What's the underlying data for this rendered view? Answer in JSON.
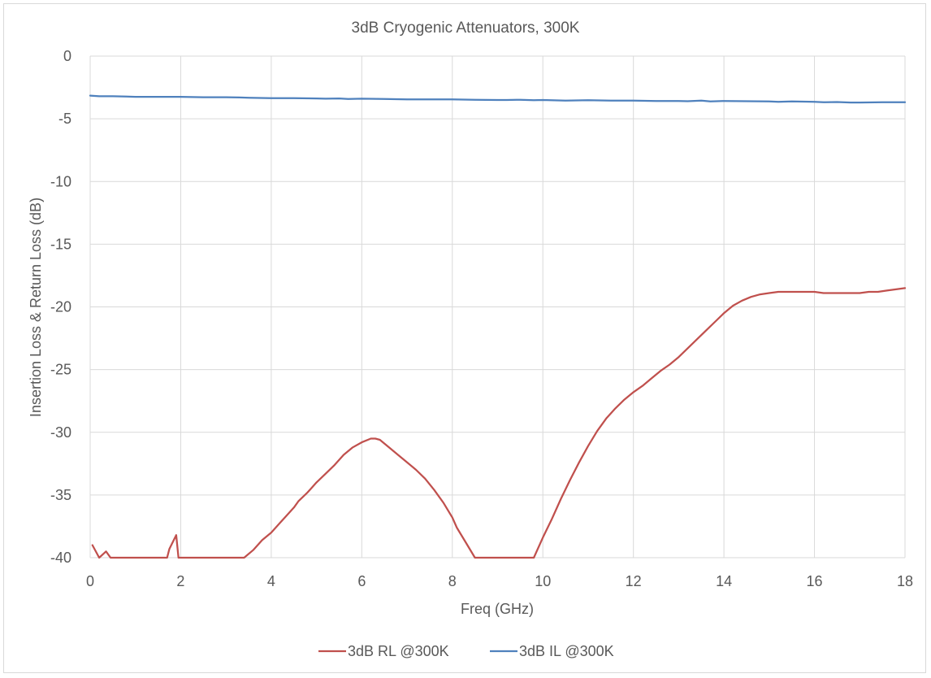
{
  "chart_data": {
    "type": "line",
    "title": "3dB Cryogenic Attenuators, 300K",
    "xlabel": "Freq (GHz)",
    "ylabel": "Insertion Loss & Return Loss (dB)",
    "xlim": [
      0,
      18
    ],
    "ylim": [
      -40,
      0
    ],
    "x_ticks": [
      0,
      2,
      4,
      6,
      8,
      10,
      12,
      14,
      16,
      18
    ],
    "y_ticks": [
      0,
      -5,
      -10,
      -15,
      -20,
      -25,
      -30,
      -35,
      -40
    ],
    "grid": true,
    "legend_position": "bottom",
    "series": [
      {
        "name": "3dB RL @300K",
        "color": "#c0504d",
        "x": [
          0.05,
          0.2,
          0.35,
          0.45,
          1.7,
          1.75,
          1.9,
          1.95,
          3.4,
          3.6,
          3.8,
          4.0,
          4.2,
          4.3,
          4.5,
          4.6,
          4.8,
          5.0,
          5.2,
          5.4,
          5.6,
          5.8,
          6.0,
          6.2,
          6.3,
          6.4,
          6.6,
          6.8,
          7.0,
          7.2,
          7.4,
          7.6,
          7.8,
          8.0,
          8.1,
          8.3,
          8.5,
          8.6,
          9.8,
          10.0,
          10.2,
          10.4,
          10.6,
          10.8,
          11.0,
          11.2,
          11.4,
          11.6,
          11.8,
          12.0,
          12.2,
          12.4,
          12.6,
          12.8,
          13.0,
          13.2,
          13.4,
          13.6,
          13.8,
          14.0,
          14.2,
          14.4,
          14.6,
          14.8,
          15.0,
          15.2,
          15.4,
          15.6,
          15.8,
          16.0,
          16.2,
          16.4,
          16.6,
          16.8,
          17.0,
          17.2,
          17.4,
          17.6,
          17.8,
          18.0
        ],
        "values": [
          -39.0,
          -40.0,
          -39.5,
          -40.0,
          -40.0,
          -39.3,
          -38.2,
          -40.0,
          -40.0,
          -39.4,
          -38.6,
          -38.0,
          -37.2,
          -36.8,
          -36.0,
          -35.5,
          -34.8,
          -34.0,
          -33.3,
          -32.6,
          -31.8,
          -31.2,
          -30.8,
          -30.5,
          -30.5,
          -30.6,
          -31.2,
          -31.8,
          -32.4,
          -33.0,
          -33.7,
          -34.6,
          -35.6,
          -36.8,
          -37.6,
          -38.8,
          -40.0,
          -40.0,
          -40.0,
          -38.4,
          -36.9,
          -35.3,
          -33.8,
          -32.4,
          -31.1,
          -29.9,
          -28.9,
          -28.1,
          -27.4,
          -26.8,
          -26.3,
          -25.7,
          -25.1,
          -24.6,
          -24.0,
          -23.3,
          -22.6,
          -21.9,
          -21.2,
          -20.5,
          -19.9,
          -19.5,
          -19.2,
          -19.0,
          -18.9,
          -18.8,
          -18.8,
          -18.8,
          -18.8,
          -18.8,
          -18.9,
          -18.9,
          -18.9,
          -18.9,
          -18.9,
          -18.8,
          -18.8,
          -18.7,
          -18.6,
          -18.5
        ]
      },
      {
        "name": "3dB IL @300K",
        "color": "#4f81bd",
        "x": [
          0.0,
          0.2,
          0.5,
          0.8,
          1.0,
          1.5,
          2.0,
          2.5,
          3.0,
          3.3,
          3.5,
          4.0,
          4.5,
          5.0,
          5.2,
          5.5,
          5.7,
          6.0,
          6.5,
          7.0,
          7.5,
          8.0,
          8.5,
          9.0,
          9.2,
          9.5,
          9.8,
          10.0,
          10.5,
          11.0,
          11.5,
          12.0,
          12.5,
          13.0,
          13.2,
          13.5,
          13.7,
          14.0,
          14.5,
          15.0,
          15.2,
          15.5,
          16.0,
          16.2,
          16.5,
          16.8,
          17.0,
          17.5,
          18.0
        ],
        "values": [
          -3.15,
          -3.2,
          -3.2,
          -3.22,
          -3.25,
          -3.25,
          -3.25,
          -3.28,
          -3.28,
          -3.3,
          -3.32,
          -3.35,
          -3.35,
          -3.38,
          -3.4,
          -3.38,
          -3.42,
          -3.4,
          -3.42,
          -3.45,
          -3.45,
          -3.45,
          -3.48,
          -3.5,
          -3.5,
          -3.48,
          -3.52,
          -3.5,
          -3.55,
          -3.52,
          -3.55,
          -3.55,
          -3.58,
          -3.58,
          -3.6,
          -3.55,
          -3.62,
          -3.58,
          -3.6,
          -3.62,
          -3.65,
          -3.62,
          -3.65,
          -3.68,
          -3.66,
          -3.7,
          -3.7,
          -3.68,
          -3.68
        ]
      }
    ]
  }
}
